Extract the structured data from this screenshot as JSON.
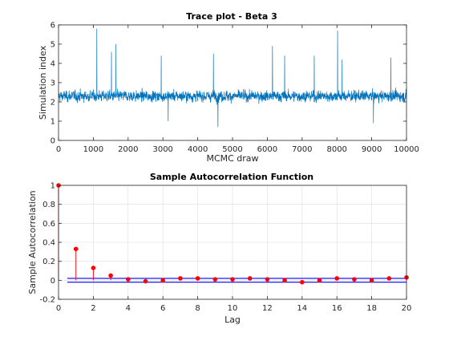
{
  "chart_data": [
    {
      "type": "line",
      "title": "Trace plot - Beta 3",
      "xlabel": "MCMC draw",
      "ylabel": "Simulation index",
      "xlim": [
        0,
        10000
      ],
      "ylim": [
        0,
        6
      ],
      "xticks": [
        0,
        1000,
        2000,
        3000,
        4000,
        5000,
        6000,
        7000,
        8000,
        9000,
        10000
      ],
      "yticks": [
        0,
        1,
        2,
        3,
        4,
        5,
        6
      ],
      "grid": false,
      "line_color": "#0072BD",
      "series_summary": {
        "n_draws": 10000,
        "center": 2.3,
        "typical_range": [
          1.2,
          3.6
        ],
        "min": 0.7,
        "max": 5.8
      },
      "spikes": [
        {
          "x": 1100,
          "y": 5.8
        },
        {
          "x": 1650,
          "y": 5.0
        },
        {
          "x": 1520,
          "y": 4.6
        },
        {
          "x": 2950,
          "y": 4.4
        },
        {
          "x": 4450,
          "y": 4.5
        },
        {
          "x": 6150,
          "y": 4.9
        },
        {
          "x": 6500,
          "y": 4.4
        },
        {
          "x": 7350,
          "y": 4.4
        },
        {
          "x": 8020,
          "y": 5.7
        },
        {
          "x": 8150,
          "y": 4.2
        },
        {
          "x": 9550,
          "y": 4.3
        },
        {
          "x": 4580,
          "y": 0.7
        },
        {
          "x": 9050,
          "y": 0.9
        },
        {
          "x": 3150,
          "y": 1.0
        }
      ]
    },
    {
      "type": "scatter",
      "title": "Sample Autocorrelation Function",
      "xlabel": "Lag",
      "ylabel": "Sample Autocorrelation",
      "xlim": [
        0,
        20
      ],
      "ylim": [
        -0.2,
        1
      ],
      "xticks": [
        0,
        2,
        4,
        6,
        8,
        10,
        12,
        14,
        16,
        18,
        20
      ],
      "yticks": [
        -0.2,
        0,
        0.2,
        0.4,
        0.6,
        0.8,
        1
      ],
      "grid": true,
      "stem_color": "#FF0000",
      "bound_color": "#0000FF",
      "confidence_bounds": [
        0.02,
        -0.02
      ],
      "lags": [
        0,
        1,
        2,
        3,
        4,
        5,
        6,
        7,
        8,
        9,
        10,
        11,
        12,
        13,
        14,
        15,
        16,
        17,
        18,
        19,
        20
      ],
      "acf": [
        1.0,
        0.33,
        0.13,
        0.05,
        0.01,
        -0.01,
        0.0,
        0.02,
        0.02,
        0.01,
        0.01,
        0.02,
        0.01,
        0.0,
        -0.02,
        0.0,
        0.02,
        0.01,
        0.0,
        0.02,
        0.03
      ]
    }
  ]
}
